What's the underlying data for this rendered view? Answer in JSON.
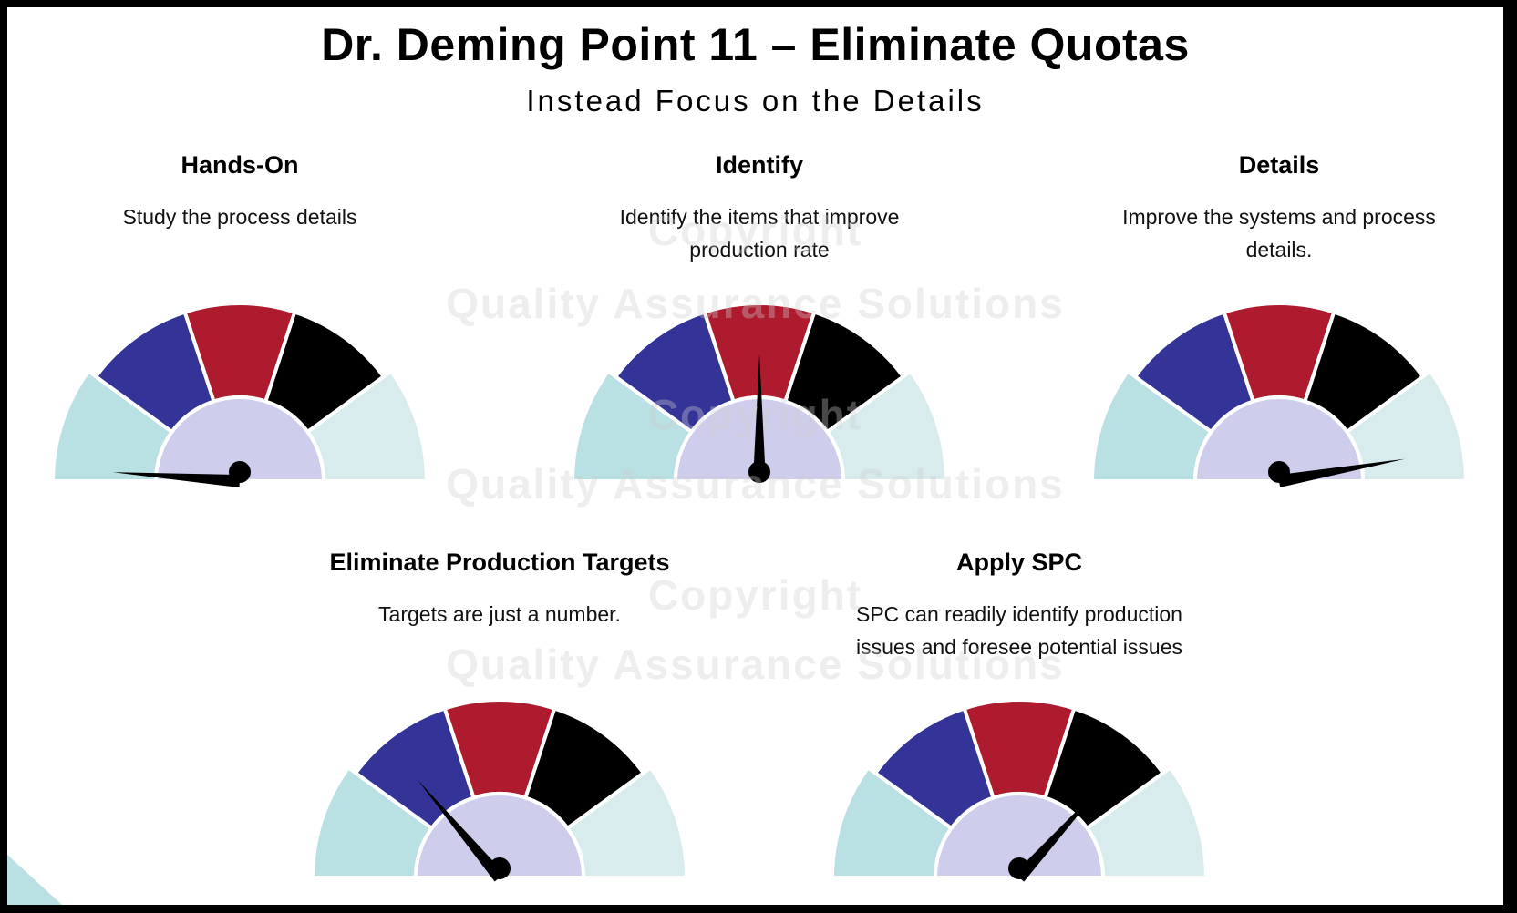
{
  "slide": {
    "title": "Dr. Deming Point 11 – Eliminate Quotas",
    "subtitle": "Instead Focus on the Details"
  },
  "colors": {
    "outer_left": "#b9e0e2",
    "outer_right": "#d8ecee",
    "blue": "#343397",
    "red": "#ae1b2e",
    "black": "#000000",
    "hub": "#cfcdec",
    "needle": "#000000"
  },
  "gauges": [
    {
      "title": "Hands-On",
      "description": "Study the process details",
      "needle_angle_deg": 176
    },
    {
      "title": "Identify",
      "description": "Identify the items that improve production rate",
      "needle_angle_deg": 90
    },
    {
      "title": "Details",
      "description": "Improve the systems and process details.",
      "needle_angle_deg": 10
    },
    {
      "title": "Eliminate Production Targets",
      "description": "Targets are just a number.",
      "needle_angle_deg": 130
    },
    {
      "title": "Apply SPC",
      "description": "SPC can readily identify production issues and foresee potential issues",
      "needle_angle_deg": 48
    }
  ],
  "watermark": {
    "line1": "Copyright",
    "line2": "Quality Assurance Solutions"
  }
}
